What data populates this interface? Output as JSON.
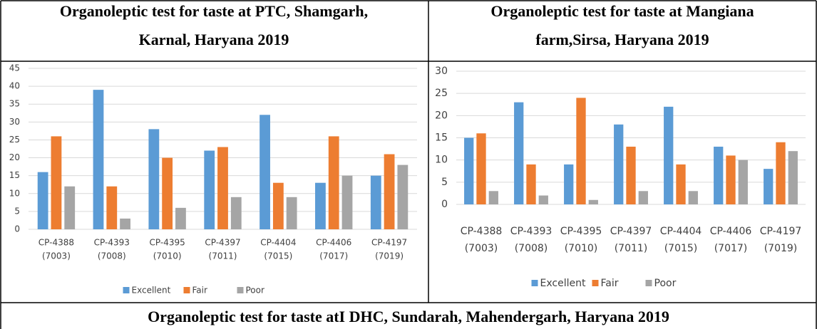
{
  "chart_data": [
    {
      "type": "bar",
      "title": [
        "Organoleptic test for taste at PTC, Shamgarh,",
        "Karnal, Haryana 2019"
      ],
      "categories": [
        [
          "CP-4388",
          "(7003)"
        ],
        [
          "CP-4393",
          "(7008)"
        ],
        [
          "CP-4395",
          "(7010)"
        ],
        [
          "CP-4397",
          "(7011)"
        ],
        [
          "CP-4404",
          "(7015)"
        ],
        [
          "CP-4406",
          "(7017)"
        ],
        [
          "CP-4197",
          "(7019)"
        ]
      ],
      "series": [
        {
          "name": "Excellent",
          "color": "#5b9bd5",
          "values": [
            16,
            39,
            28,
            22,
            32,
            13,
            15
          ]
        },
        {
          "name": "Fair",
          "color": "#ed7d31",
          "values": [
            26,
            12,
            20,
            23,
            13,
            26,
            21
          ]
        },
        {
          "name": "Poor",
          "color": "#a5a5a5",
          "values": [
            12,
            3,
            6,
            9,
            9,
            15,
            18
          ]
        }
      ],
      "ylim": [
        0,
        45
      ],
      "yticks": [
        0,
        5,
        10,
        15,
        20,
        25,
        30,
        35,
        40,
        45
      ],
      "grid": true,
      "legend": "bottom"
    },
    {
      "type": "bar",
      "title": [
        "Organoleptic test for taste at Mangiana",
        "farm,Sirsa, Haryana 2019"
      ],
      "categories": [
        [
          "CP-4388",
          "(7003)"
        ],
        [
          "CP-4393",
          "(7008)"
        ],
        [
          "CP-4395",
          "(7010)"
        ],
        [
          "CP-4397",
          "(7011)"
        ],
        [
          "CP-4404",
          "(7015)"
        ],
        [
          "CP-4406",
          "(7017)"
        ],
        [
          "CP-4197",
          "(7019)"
        ]
      ],
      "series": [
        {
          "name": "Excellent",
          "color": "#5b9bd5",
          "values": [
            15,
            23,
            9,
            18,
            22,
            13,
            8
          ]
        },
        {
          "name": "Fair",
          "color": "#ed7d31",
          "values": [
            16,
            9,
            24,
            13,
            9,
            11,
            14
          ]
        },
        {
          "name": "Poor",
          "color": "#a5a5a5",
          "values": [
            3,
            2,
            1,
            3,
            3,
            10,
            12
          ]
        }
      ],
      "ylim": [
        0,
        30
      ],
      "yticks": [
        0,
        5,
        10,
        15,
        20,
        25,
        30
      ],
      "grid": true,
      "legend": "bottom"
    }
  ],
  "caption": "Organoleptic test for taste atI DHC, Sundarah, Mahendergarh, Haryana 2019"
}
